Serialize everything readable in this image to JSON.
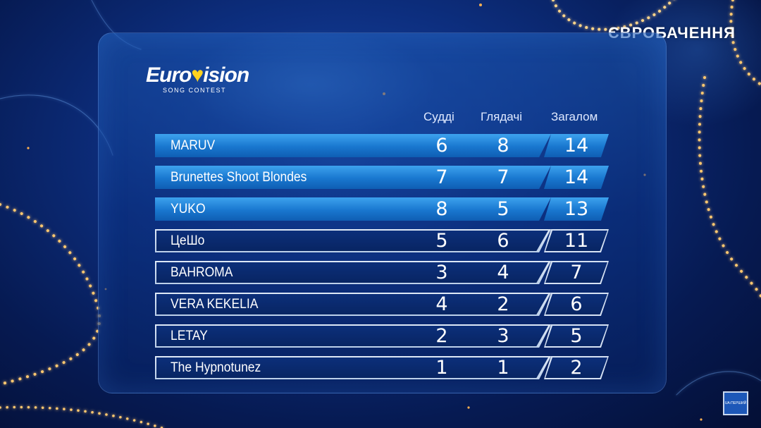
{
  "channel": {
    "name": "ЄВРОБАЧЕННЯ"
  },
  "logo": {
    "word_start": "Euro",
    "word_end": "ision",
    "subtitle": "SONG CONTEST"
  },
  "corner_badge": {
    "text": "UA:ПЕРШИЙ"
  },
  "table": {
    "headers": {
      "jury": "Судді",
      "viewers": "Глядачі",
      "total": "Загалом"
    },
    "rows": [
      {
        "name": "MARUV",
        "jury": "6",
        "viewers": "8",
        "total": "14",
        "highlight": true
      },
      {
        "name": "Brunettes Shoot Blondes",
        "jury": "7",
        "viewers": "7",
        "total": "14",
        "highlight": true
      },
      {
        "name": "YUKO",
        "jury": "8",
        "viewers": "5",
        "total": "13",
        "highlight": true
      },
      {
        "name": "ЦеШо",
        "jury": "5",
        "viewers": "6",
        "total": "11",
        "highlight": false
      },
      {
        "name": "BAHROMA",
        "jury": "3",
        "viewers": "4",
        "total": "7",
        "highlight": false
      },
      {
        "name": "VERA KEKELIA",
        "jury": "4",
        "viewers": "2",
        "total": "6",
        "highlight": false
      },
      {
        "name": "LETAY",
        "jury": "2",
        "viewers": "3",
        "total": "5",
        "highlight": false
      },
      {
        "name": "The Hypnotunez",
        "jury": "1",
        "viewers": "1",
        "total": "2",
        "highlight": false
      }
    ]
  }
}
